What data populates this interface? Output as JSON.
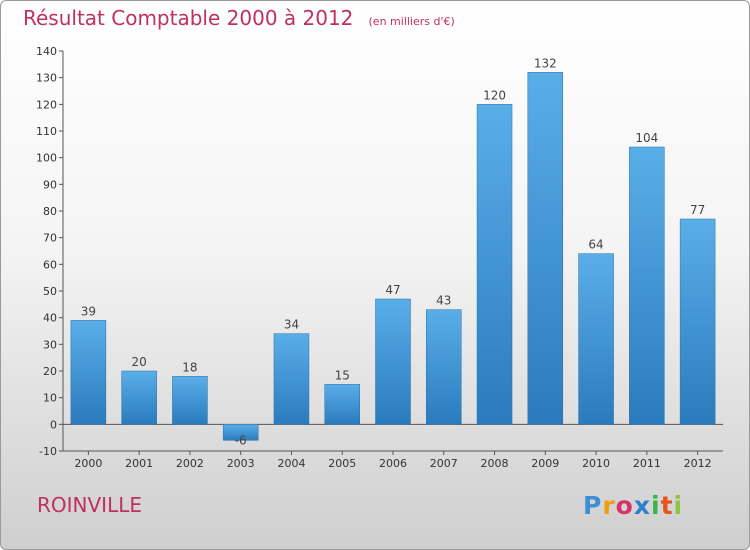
{
  "chart_data": {
    "type": "bar",
    "title": "Résultat Comptable 2000 à 2012",
    "unit_label": "(en milliers d'€)",
    "categories": [
      "2000",
      "2001",
      "2002",
      "2003",
      "2004",
      "2005",
      "2006",
      "2007",
      "2008",
      "2009",
      "2010",
      "2011",
      "2012"
    ],
    "values": [
      39,
      20,
      18,
      -6,
      34,
      15,
      47,
      43,
      120,
      132,
      64,
      104,
      77
    ],
    "ylim": [
      -10,
      140
    ],
    "yticks": [
      -10,
      0,
      10,
      20,
      30,
      40,
      50,
      60,
      70,
      80,
      90,
      100,
      110,
      120,
      130,
      140
    ],
    "grid": false,
    "bar_color_top": "#5aaee8",
    "bar_color_bottom": "#2a7bbd"
  },
  "footer": {
    "city": "ROINVILLE",
    "logo": [
      "P",
      "r",
      "o",
      "x",
      "i",
      "t",
      "i"
    ]
  },
  "colors": {
    "accent": "#c0305e"
  }
}
